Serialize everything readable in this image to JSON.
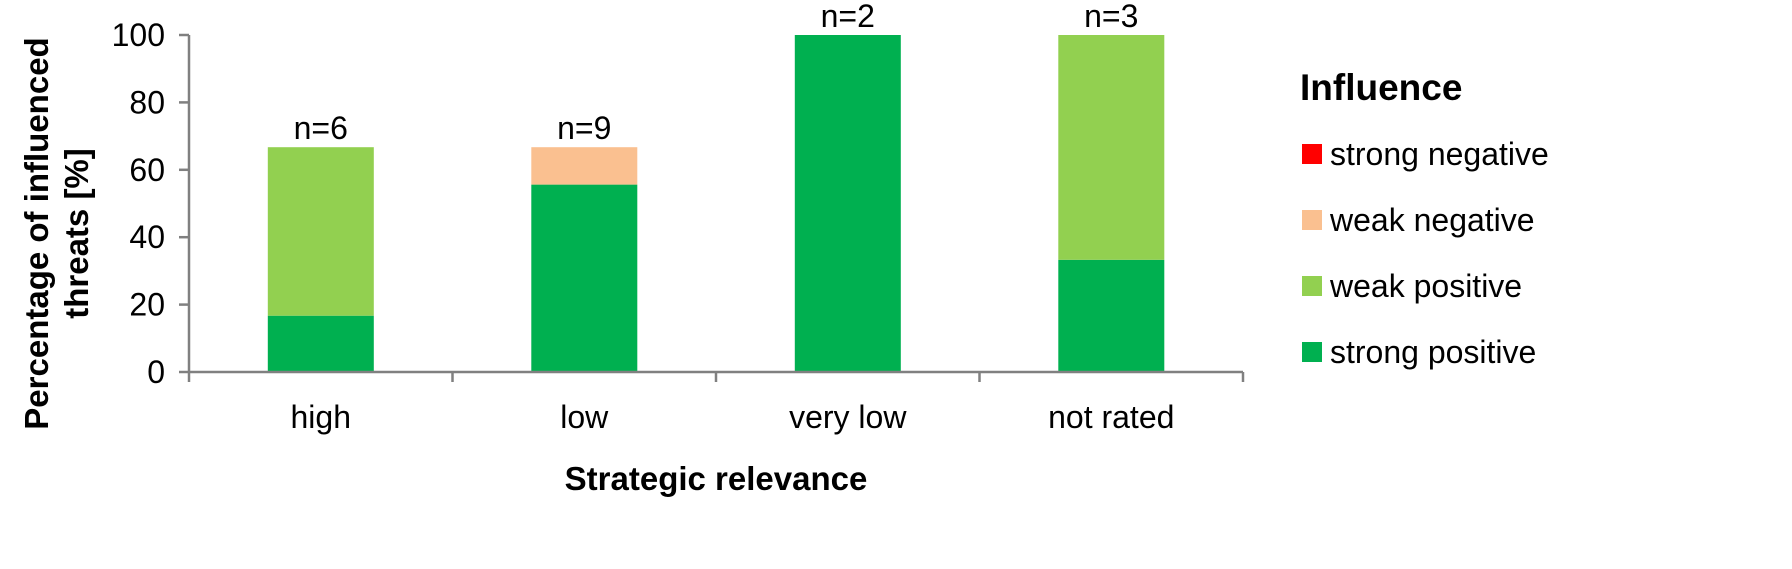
{
  "chart_data": {
    "type": "bar",
    "stacked": true,
    "categories": [
      "high",
      "low",
      "very low",
      "not rated"
    ],
    "series": [
      {
        "name": "strong positive",
        "color": "#00b050",
        "values": [
          16.7,
          55.6,
          100,
          33.3
        ]
      },
      {
        "name": "weak positive",
        "color": "#92d050",
        "values": [
          50.0,
          0,
          0,
          66.7
        ]
      },
      {
        "name": "weak negative",
        "color": "#fac090",
        "values": [
          0,
          11.1,
          0,
          0
        ]
      },
      {
        "name": "strong negative",
        "color": "#ff0000",
        "values": [
          0,
          0,
          0,
          0
        ]
      }
    ],
    "bar_labels": [
      "n=6",
      "n=9",
      "n=2",
      "n=3"
    ],
    "xlabel": "Strategic relevance",
    "ylabel_lines": [
      "Percentage of influenced",
      "threats [%]"
    ],
    "ylim": [
      0,
      100
    ],
    "yticks": [
      0,
      20,
      40,
      60,
      80,
      100
    ],
    "grid": false,
    "legend": {
      "title": "Influence",
      "placement": "right",
      "entries": [
        "strong negative",
        "weak negative",
        "weak positive",
        "strong positive"
      ],
      "colors": [
        "#ff0000",
        "#fac090",
        "#92d050",
        "#00b050"
      ]
    }
  }
}
